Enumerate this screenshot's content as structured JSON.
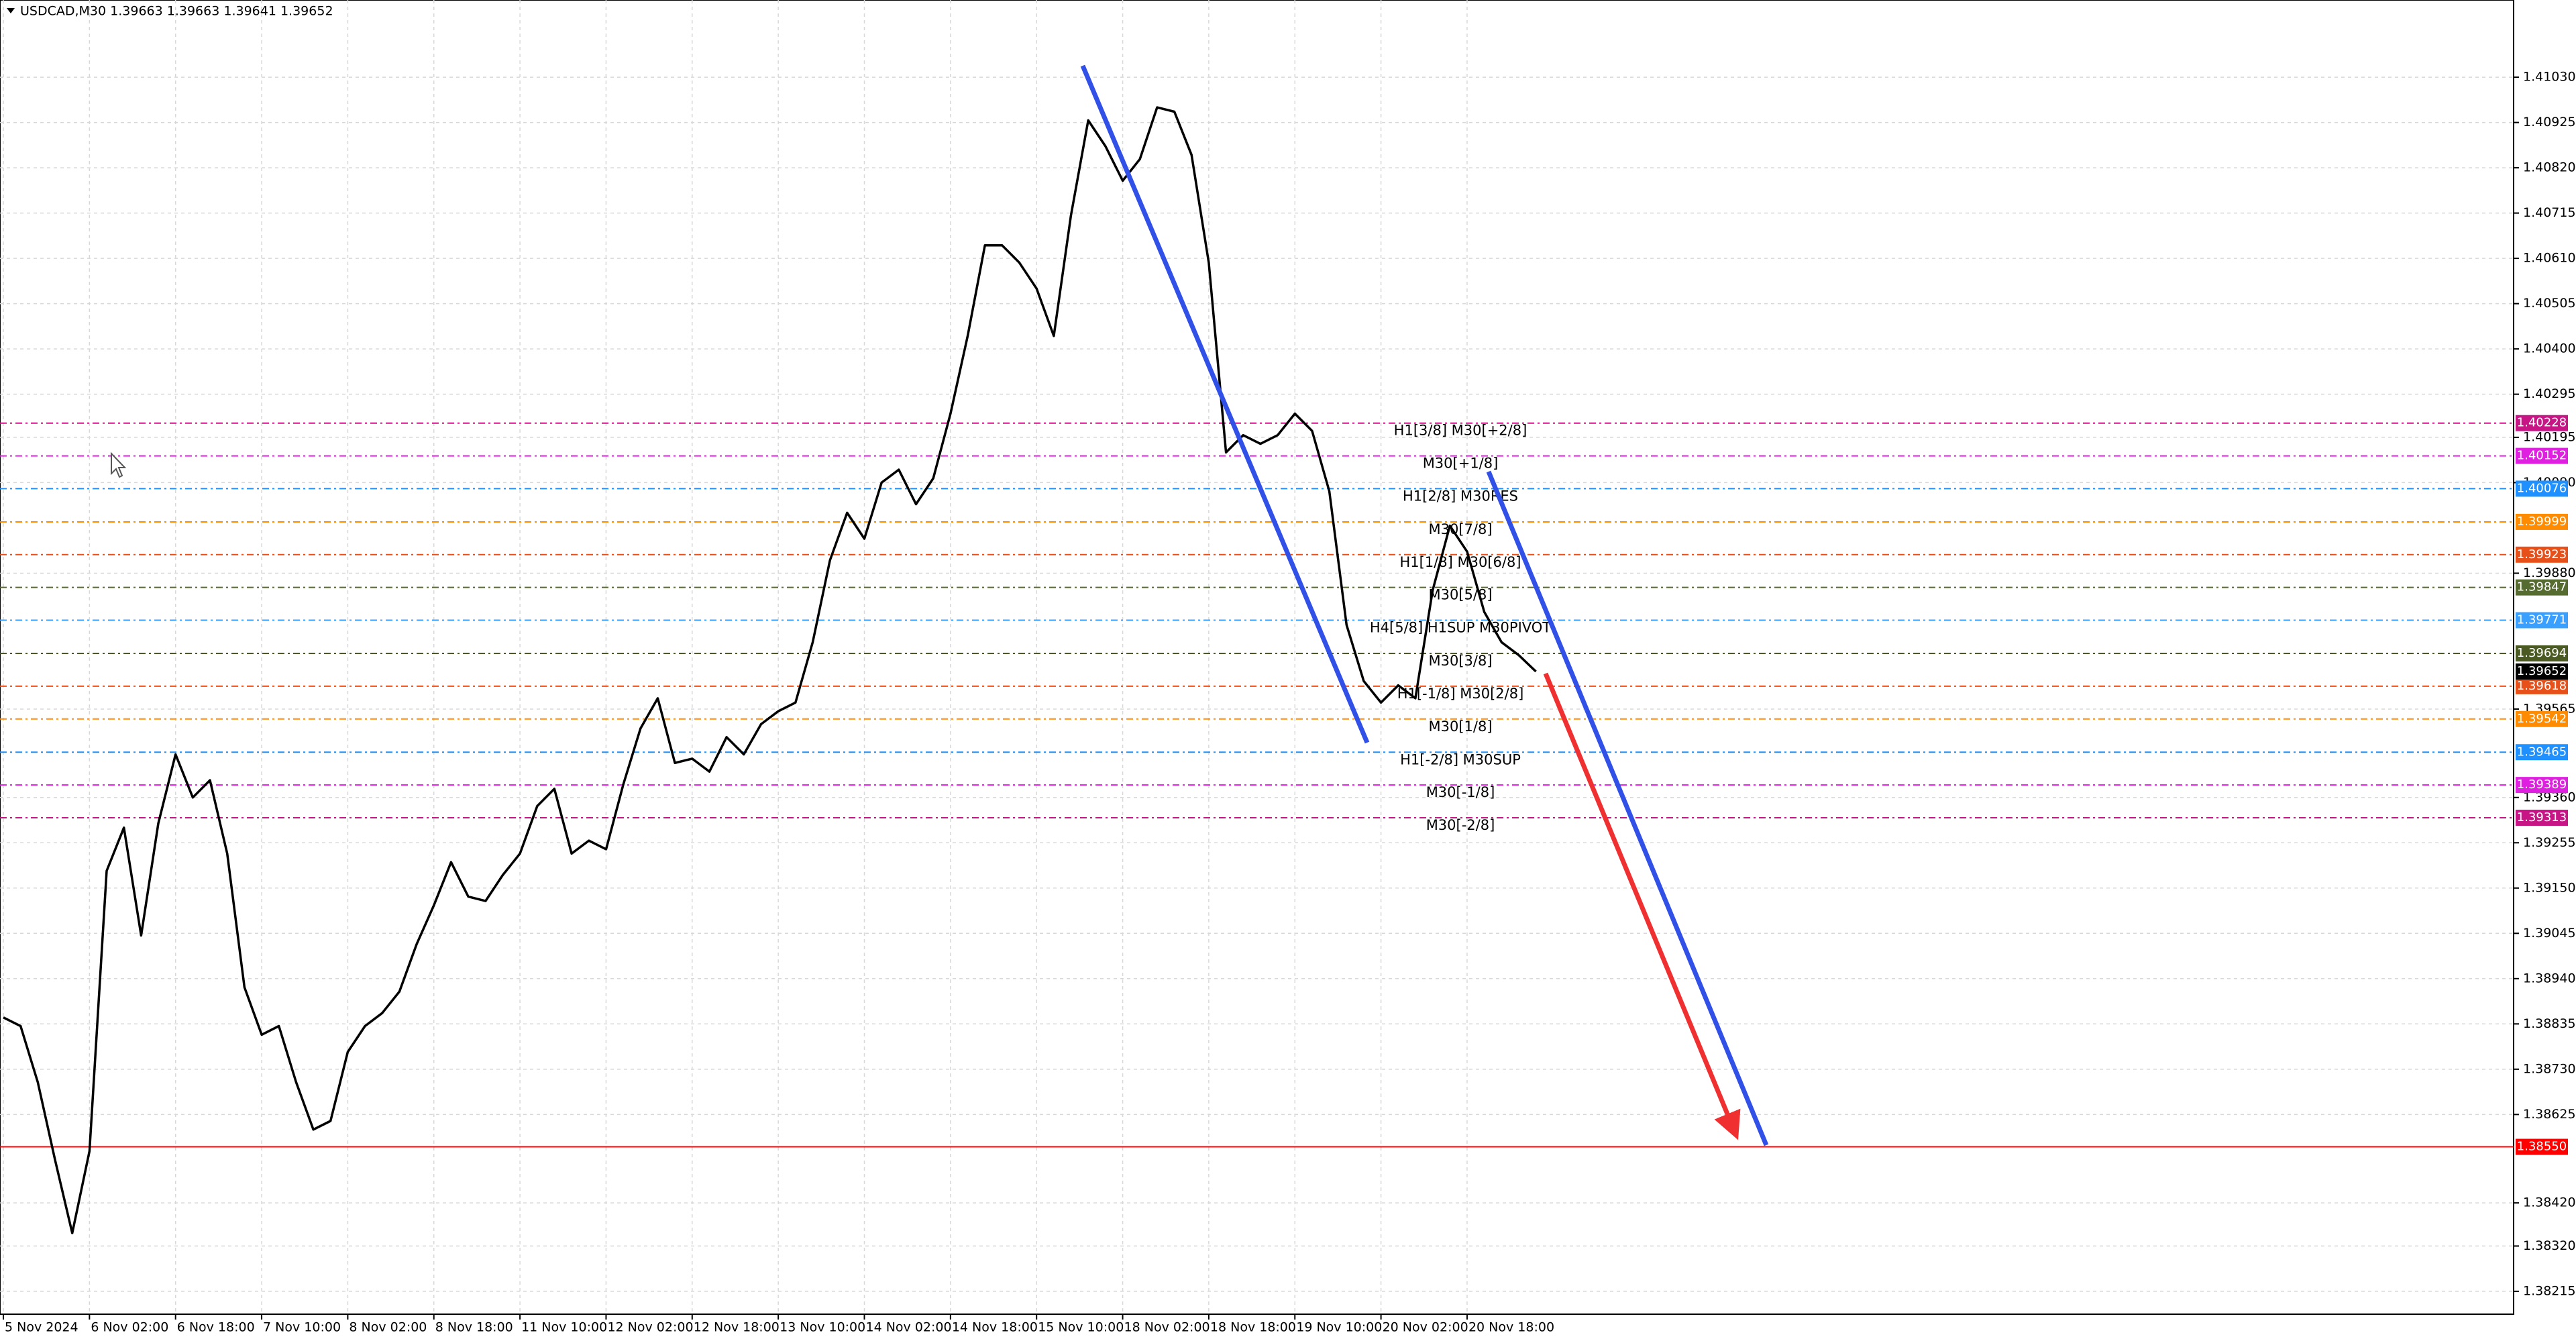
{
  "chart_data": {
    "type": "line",
    "title": "USDCAD,M30  1.39663 1.39663 1.39641 1.39652",
    "categories": [
      "5 Nov 2024",
      null,
      null,
      null,
      null,
      "6 Nov 02:00",
      null,
      null,
      null,
      null,
      "6 Nov 18:00",
      null,
      null,
      null,
      null,
      "7 Nov 10:00",
      null,
      null,
      null,
      null,
      "8 Nov 02:00",
      null,
      null,
      null,
      null,
      "8 Nov 18:00",
      null,
      null,
      null,
      null,
      "11 Nov 10:00",
      null,
      null,
      null,
      null,
      "12 Nov 02:00",
      null,
      null,
      null,
      null,
      "12 Nov 18:00",
      null,
      null,
      null,
      null,
      "13 Nov 10:00",
      null,
      null,
      null,
      null,
      "14 Nov 02:00",
      null,
      null,
      null,
      null,
      "14 Nov 18:00",
      null,
      null,
      null,
      null,
      "15 Nov 10:00",
      null,
      null,
      null,
      null,
      "18 Nov 02:00",
      null,
      null,
      null,
      null,
      "18 Nov 18:00",
      null,
      null,
      null,
      null,
      "19 Nov 10:00",
      null,
      null,
      null,
      null,
      "20 Nov 02:00",
      null,
      null,
      null,
      null,
      "20 Nov 18:00",
      null,
      null,
      null,
      null
    ],
    "series": [
      {
        "name": "USDCAD",
        "color": "#000000",
        "values": [
          1.3885,
          1.3883,
          1.387,
          1.3852,
          1.3835,
          1.3854,
          1.3919,
          1.3929,
          1.3904,
          1.393,
          1.3946,
          1.3936,
          1.394,
          1.3923,
          1.3892,
          1.3881,
          1.3883,
          1.387,
          1.3859,
          1.3861,
          1.3877,
          1.3883,
          1.3886,
          1.3891,
          1.3902,
          1.3911,
          1.3921,
          1.3913,
          1.3912,
          1.3918,
          1.3923,
          1.3934,
          1.3938,
          1.3923,
          1.3926,
          1.3924,
          1.3939,
          1.3952,
          1.3959,
          1.3944,
          1.3945,
          1.3942,
          1.395,
          1.3946,
          1.3953,
          1.3956,
          1.3958,
          1.3972,
          1.3991,
          1.4002,
          1.3996,
          1.4009,
          1.4012,
          1.4004,
          1.401,
          1.4025,
          1.4043,
          1.4064,
          1.4064,
          1.406,
          1.4054,
          1.4043,
          1.4071,
          1.4093,
          1.4087,
          1.4079,
          1.4084,
          1.4096,
          1.4095,
          1.4085,
          1.406,
          1.4016,
          1.402,
          1.4018,
          1.402,
          1.4025,
          1.4021,
          1.4007,
          1.3976,
          1.3963,
          1.3958,
          1.3962,
          1.3959,
          1.3984,
          1.3999,
          1.3993,
          1.3979,
          1.3972,
          1.3969,
          1.39652
        ]
      }
    ],
    "ylim": [
      1.38162,
      1.41209
    ],
    "yticks": [
      {
        "value": 1.4103,
        "label": "1.41030"
      },
      1.40925,
      {
        "value": 1.4082,
        "label": "1.40820"
      },
      1.40715,
      {
        "value": 1.4061,
        "label": "1.40610"
      },
      1.40505,
      {
        "value": 1.404,
        "label": "1.40400"
      },
      1.40295,
      1.40195,
      {
        "value": 1.4009,
        "label": "1.40090"
      },
      {
        "value": 1.3988,
        "label": "1.39880"
      },
      1.39565,
      {
        "value": 1.3936,
        "label": "1.39360"
      },
      1.39255,
      {
        "value": 1.3915,
        "label": "1.39150"
      },
      1.39045,
      {
        "value": 1.3894,
        "label": "1.38940"
      },
      1.38835,
      {
        "value": 1.3873,
        "label": "1.38730"
      },
      1.38625,
      {
        "value": 1.3842,
        "label": "1.38420"
      },
      {
        "value": 1.3832,
        "label": "1.38320"
      },
      1.38215
    ],
    "grid": true,
    "levels": [
      {
        "name": "H1[3/8] M30[+2/8]",
        "price": 1.40228,
        "color": "#c71585"
      },
      {
        "name": "M30[+1/8]",
        "price": 1.40152,
        "color": "#e020e0"
      },
      {
        "name": "H1[2/8] M30RES",
        "price": 1.40076,
        "color": "#1e90ff"
      },
      {
        "name": "M30[7/8]",
        "price": 1.39999,
        "color": "#ff8c00"
      },
      {
        "name": "H1[1/8] M30[6/8]",
        "price": 1.39923,
        "color": "#e8501a"
      },
      {
        "name": "M30[5/8]",
        "price": 1.39847,
        "color": "#556b2f"
      },
      {
        "name": "H4[5/8] H1SUP M30PIVOT",
        "price": 1.39771,
        "color": "#3aa0ff"
      },
      {
        "name": "M30[3/8]",
        "price": 1.39694,
        "color": "#4a5a22"
      },
      {
        "name": "H1[-1/8] M30[2/8]",
        "price": 1.39618,
        "color": "#e8501a"
      },
      {
        "name": "M30[1/8]",
        "price": 1.39542,
        "color": "#ff8c00"
      },
      {
        "name": "H1[-2/8] M30SUP",
        "price": 1.39465,
        "color": "#1e90ff"
      },
      {
        "name": "M30[-1/8]",
        "price": 1.39389,
        "color": "#e020e0"
      },
      {
        "name": "M30[-2/8]",
        "price": 1.39313,
        "color": "#c71585"
      },
      {
        "price": 1.3855,
        "price_label": "1.38550",
        "color": "#ff0000"
      }
    ],
    "current_price": 1.39652
  }
}
